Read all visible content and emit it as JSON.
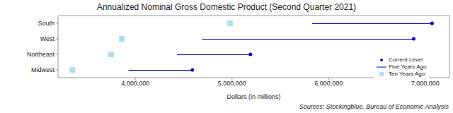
{
  "chart_data": {
    "type": "dot_range",
    "title": "Annualized Nominal Gross Domestic Product (Second Quarter 2021)",
    "orientation": "horizontal",
    "categories": [
      "South",
      "West",
      "Northeast",
      "Midwest"
    ],
    "series": [
      {
        "name": "Current Level",
        "color": "#0000cc",
        "marker": "circle",
        "values": [
          7070000,
          6880000,
          5190000,
          4590000
        ]
      },
      {
        "name": "Five Years Ago",
        "color": "#0000cc",
        "marker": "line",
        "line_style": "solid",
        "values": [
          5830000,
          4690000,
          4430000,
          3930000
        ]
      },
      {
        "name": "Ten Years Ago",
        "color": "#b0e0e6",
        "marker": "square",
        "values": [
          4980000,
          3860000,
          3750000,
          3350000
        ]
      }
    ],
    "xlim": [
      3200000,
      7250000
    ],
    "xticks": [
      {
        "value": 4000000,
        "label": "4,000,000"
      },
      {
        "value": 5000000,
        "label": "5,000,000"
      },
      {
        "value": 6000000,
        "label": "6,000,000"
      },
      {
        "value": 7000000,
        "label": "7,000,000"
      }
    ],
    "x_label": "Dollars (in millions)",
    "source": "Sources: Stockingblue, Bureau of Economic Analysis",
    "legend": "lower right",
    "grid": false
  }
}
